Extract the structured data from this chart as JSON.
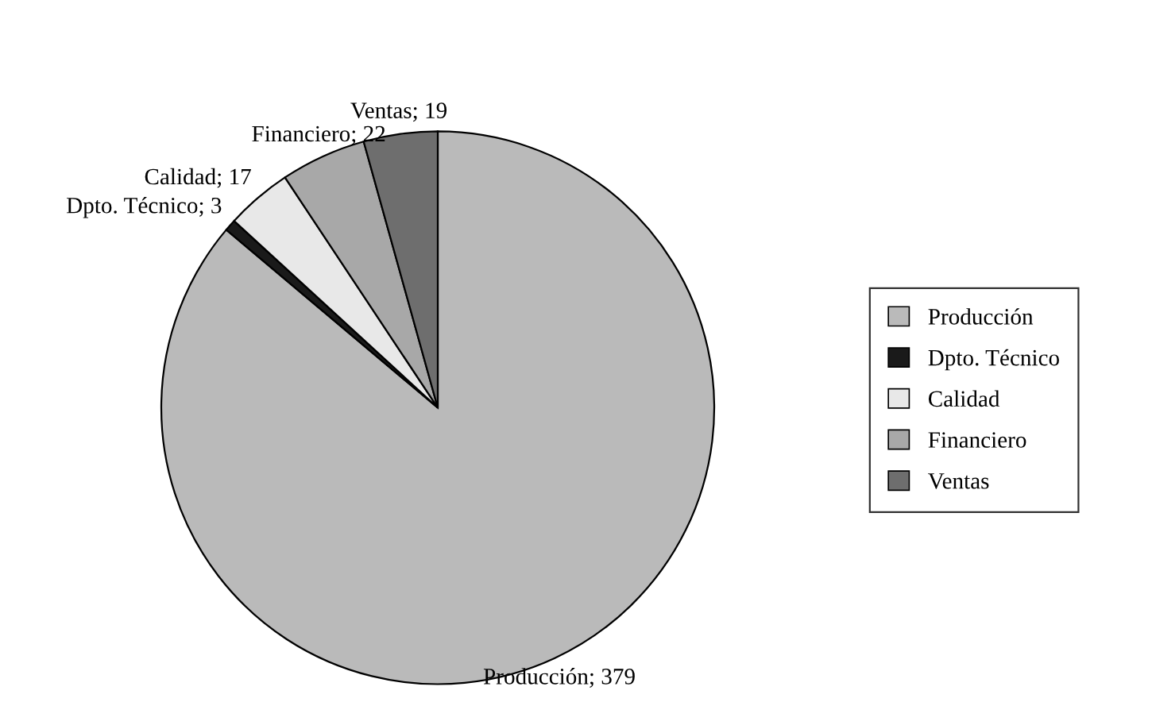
{
  "chart_data": {
    "type": "pie",
    "categories": [
      "Producción",
      "Dpto. Técnico",
      "Calidad",
      "Financiero",
      "Ventas"
    ],
    "values": [
      379,
      3,
      17,
      22,
      19
    ],
    "value_labels": [
      "Producción; 379",
      "Dpto. Técnico; 3",
      "Calidad; 17",
      "Financiero; 22",
      "Ventas; 19"
    ],
    "colors": [
      "#bababa",
      "#1a1a1a",
      "#e8e8e8",
      "#a8a8a8",
      "#6e6e6e"
    ],
    "legend": "right"
  }
}
